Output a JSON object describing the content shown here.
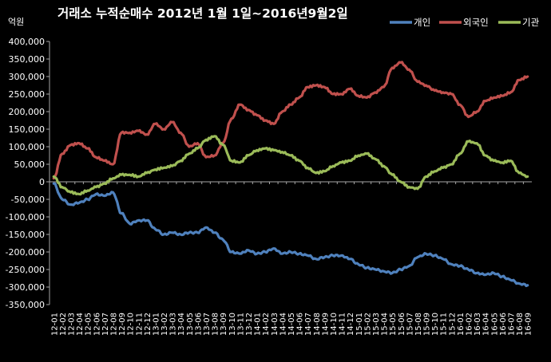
{
  "chart_data": {
    "type": "line",
    "title": "거래소 누적순매수 2012년 1월 1일~2016년9월2일",
    "ylabel": "억원",
    "ylim": [
      -350000,
      400000
    ],
    "yticks": [
      400000,
      350000,
      300000,
      250000,
      200000,
      150000,
      100000,
      50000,
      0,
      -50000,
      -100000,
      -150000,
      -200000,
      -250000,
      -300000,
      -350000
    ],
    "ytick_labels": [
      "400,000",
      "350,000",
      "300,000",
      "250,000",
      "200,000",
      "150,000",
      "100,000",
      "50,000",
      "0",
      "-50,000",
      "-100,000",
      "-150,000",
      "-200,000",
      "-250,000",
      "-300,000",
      "-350,000"
    ],
    "grid": false,
    "legend_position": "top-right",
    "categories": [
      "12-01",
      "12-02",
      "12-03",
      "12-04",
      "12-05",
      "12-06",
      "12-07",
      "12-08",
      "12-09",
      "12-10",
      "12-11",
      "12-12",
      "13-01",
      "13-02",
      "13-03",
      "13-04",
      "13-05",
      "13-06",
      "13-07",
      "13-08",
      "13-09",
      "13-10",
      "13-11",
      "13-12",
      "14-01",
      "14-02",
      "14-03",
      "14-04",
      "14-05",
      "14-06",
      "14-07",
      "14-08",
      "14-09",
      "14-10",
      "14-11",
      "14-12",
      "15-01",
      "15-02",
      "15-03",
      "15-04",
      "15-05",
      "15-06",
      "15-07",
      "15-08",
      "15-09",
      "15-10",
      "15-11",
      "15-12",
      "16-01",
      "16-02",
      "16-03",
      "16-04",
      "16-05",
      "16-06",
      "16-07",
      "16-08",
      "16-09"
    ],
    "series": [
      {
        "name": "개인",
        "color": "#4f81bd",
        "values": [
          -5000,
          -50000,
          -65000,
          -60000,
          -50000,
          -35000,
          -40000,
          -30000,
          -90000,
          -120000,
          -110000,
          -110000,
          -135000,
          -150000,
          -145000,
          -150000,
          -145000,
          -145000,
          -130000,
          -145000,
          -165000,
          -200000,
          -205000,
          -195000,
          -205000,
          -200000,
          -190000,
          -205000,
          -200000,
          -205000,
          -210000,
          -220000,
          -215000,
          -210000,
          -210000,
          -220000,
          -235000,
          -245000,
          -250000,
          -255000,
          -260000,
          -250000,
          -240000,
          -215000,
          -205000,
          -210000,
          -220000,
          -235000,
          -240000,
          -250000,
          -260000,
          -265000,
          -260000,
          -270000,
          -280000,
          -290000,
          -295000
        ]
      },
      {
        "name": "외국인",
        "color": "#c0504d",
        "values": [
          10000,
          80000,
          105000,
          110000,
          95000,
          70000,
          60000,
          50000,
          140000,
          140000,
          145000,
          135000,
          165000,
          150000,
          170000,
          140000,
          100000,
          110000,
          70000,
          75000,
          110000,
          180000,
          220000,
          205000,
          190000,
          175000,
          165000,
          200000,
          220000,
          240000,
          270000,
          275000,
          270000,
          250000,
          250000,
          265000,
          245000,
          240000,
          255000,
          270000,
          325000,
          340000,
          320000,
          285000,
          275000,
          260000,
          255000,
          250000,
          220000,
          185000,
          200000,
          230000,
          240000,
          245000,
          255000,
          290000,
          300000
        ]
      },
      {
        "name": "기관",
        "color": "#9bbb59",
        "values": [
          15000,
          -15000,
          -30000,
          -35000,
          -25000,
          -15000,
          -5000,
          10000,
          20000,
          20000,
          15000,
          25000,
          35000,
          40000,
          45000,
          60000,
          80000,
          95000,
          120000,
          130000,
          105000,
          60000,
          55000,
          75000,
          90000,
          95000,
          90000,
          85000,
          75000,
          60000,
          40000,
          25000,
          30000,
          45000,
          55000,
          60000,
          75000,
          80000,
          65000,
          45000,
          20000,
          0,
          -15000,
          -20000,
          15000,
          30000,
          40000,
          50000,
          80000,
          115000,
          110000,
          75000,
          60000,
          55000,
          60000,
          25000,
          15000
        ]
      }
    ]
  }
}
